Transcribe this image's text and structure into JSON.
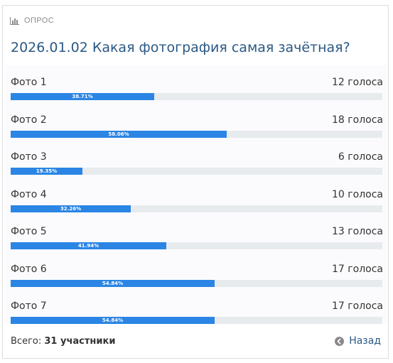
{
  "header": {
    "label": "ОПРОС",
    "icon": "bar-chart-icon"
  },
  "poll": {
    "title": "2026.01.02 Какая фотография самая зачётная?",
    "options": [
      {
        "label": "Фото 1",
        "votes": "12 голоса",
        "percent_text": "38.71%",
        "percent": 38.71
      },
      {
        "label": "Фото 2",
        "votes": "18 голоса",
        "percent_text": "58.06%",
        "percent": 58.06
      },
      {
        "label": "Фото 3",
        "votes": "6 голоса",
        "percent_text": "19.35%",
        "percent": 19.35
      },
      {
        "label": "Фото 4",
        "votes": "10 голоса",
        "percent_text": "32.26%",
        "percent": 32.26
      },
      {
        "label": "Фото 5",
        "votes": "13 голоса",
        "percent_text": "41.94%",
        "percent": 41.94
      },
      {
        "label": "Фото 6",
        "votes": "17 голоса",
        "percent_text": "54.84%",
        "percent": 54.84
      },
      {
        "label": "Фото 7",
        "votes": "17 голоса",
        "percent_text": "54.84%",
        "percent": 54.84
      }
    ]
  },
  "footer": {
    "total_label": "Всего:",
    "total_value": "31 участники",
    "back_label": "Назад",
    "back_icon": "arrow-left-circle-icon"
  },
  "colors": {
    "bar": "#2b85e4",
    "track": "#e8ebee",
    "title": "#2a5885"
  }
}
